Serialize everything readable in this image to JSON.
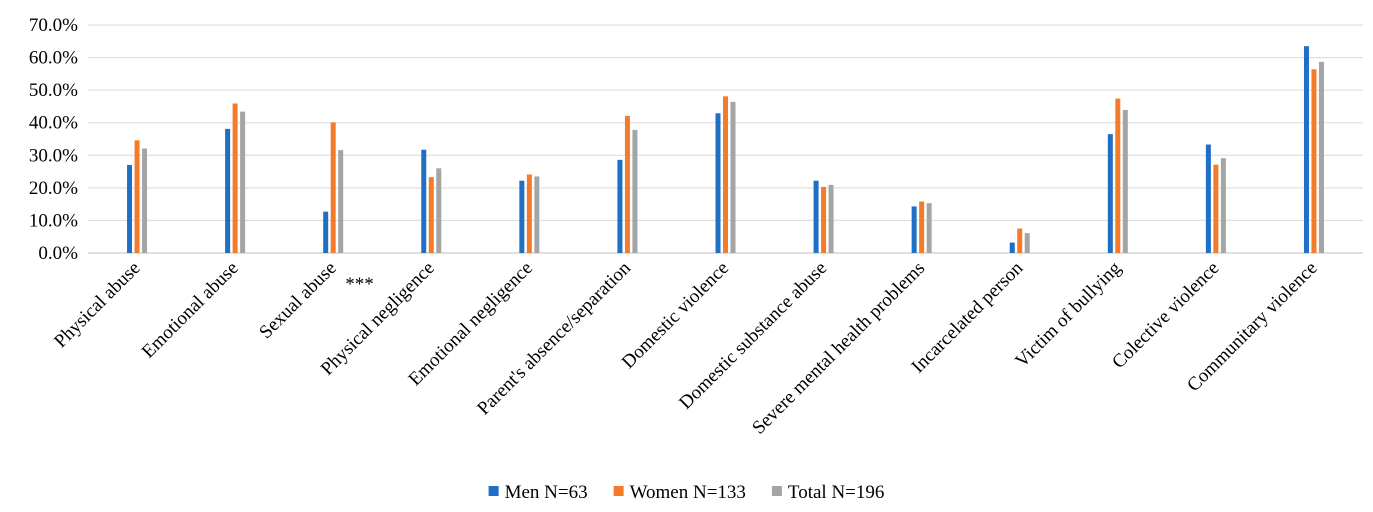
{
  "chart_data": {
    "type": "bar",
    "title": "",
    "xlabel": "",
    "ylabel": "",
    "ylim": [
      0,
      70
    ],
    "yticks": [
      0,
      10,
      20,
      30,
      40,
      50,
      60,
      70
    ],
    "ytick_format": "percent_1dp",
    "grid": true,
    "legend_position": "bottom",
    "categories": [
      "Physical abuse",
      "Emotional abuse",
      "Sexual abuse",
      "Physical negligence",
      "Emotional negligence",
      "Parent's absence/separation",
      "Domestic violence",
      "Domestic substance abuse",
      "Severe mental health problems",
      "Incarcelated person",
      "Victim of bullying",
      "Colective violence",
      "Communitary violence"
    ],
    "series": [
      {
        "name": "Men N=63",
        "color": "#1f6fc5",
        "values": [
          27.0,
          38.1,
          12.7,
          31.7,
          22.2,
          28.6,
          42.9,
          22.2,
          14.3,
          3.2,
          36.5,
          33.3,
          63.5
        ]
      },
      {
        "name": "Women N=133",
        "color": "#f47b2a",
        "values": [
          34.6,
          45.9,
          40.1,
          23.3,
          24.1,
          42.1,
          48.1,
          20.3,
          15.8,
          7.5,
          47.4,
          27.1,
          56.4
        ]
      },
      {
        "name": "Total N=196",
        "color": "#a5a5a5",
        "values": [
          32.1,
          43.4,
          31.6,
          26.0,
          23.5,
          37.8,
          46.4,
          20.9,
          15.3,
          6.1,
          43.9,
          29.1,
          58.7
        ]
      }
    ],
    "annotations": [
      {
        "category_index": 2,
        "text": "***"
      }
    ]
  }
}
